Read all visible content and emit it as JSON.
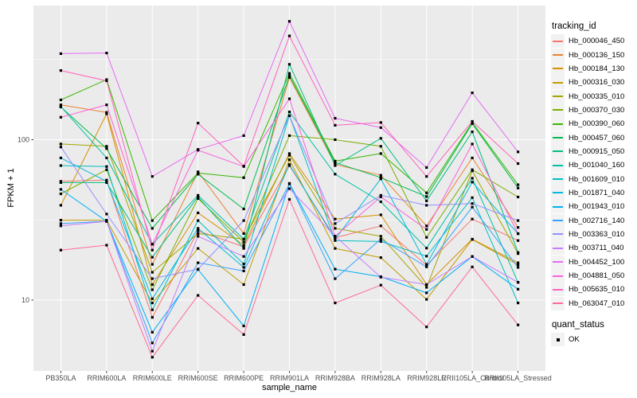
{
  "figure": {
    "panel_background": "#EBEBEB",
    "grid_color": "#FFFFFF",
    "axis_text_color": "#4D4D4D",
    "tick_color": "#333333",
    "title_text_color": "#000000",
    "legend_key_background": "#F2F2F2",
    "point_color": "#000000"
  },
  "legend": {
    "tracking_title": "tracking_id",
    "quant_title": "quant_status",
    "quant_label": "OK",
    "quant_marker": "black-square"
  },
  "chart_data": {
    "type": "line",
    "title": "",
    "xlabel": "sample_name",
    "ylabel": "FPKM + 1",
    "y_scale": "log10",
    "ylim": [
      3.6,
      686
    ],
    "yticks": [
      100,
      10
    ],
    "y_minor_gridlines": [
      316.23,
      31.62
    ],
    "grid": true,
    "legend_position": "right",
    "marker": "black-square",
    "quant_status_all_points": "OK",
    "categories": [
      "PB350LA",
      "RRIM600LA",
      "RRIM600LE",
      "RRIM600SE",
      "RRIM600PE",
      "RRIM901LA",
      "RRIM928BA",
      "RRIM928LA",
      "RRIM928LE",
      "RRII105LA_Control",
      "RRII105LA_Stressed"
    ],
    "series": [
      {
        "name": "Hb_000046_450",
        "color": "#F8766D",
        "values": [
          55,
          56,
          7.8,
          27,
          21.5,
          69,
          24.5,
          29,
          16.5,
          32,
          23.5
        ]
      },
      {
        "name": "Hb_000136_150",
        "color": "#EA8331",
        "values": [
          165,
          148,
          16.7,
          63,
          26,
          244,
          70,
          60,
          29,
          77,
          28.4
        ]
      },
      {
        "name": "Hb_000184_130",
        "color": "#D89000",
        "values": [
          39,
          145,
          12.5,
          35,
          22,
          82,
          32,
          34,
          12.5,
          24,
          17.1
        ]
      },
      {
        "name": "Hb_000316_030",
        "color": "#C09B00",
        "values": [
          31.5,
          31.5,
          9.6,
          21,
          12.5,
          75,
          21,
          18.4,
          10.1,
          23.9,
          16.6
        ]
      },
      {
        "name": "Hb_000335_010",
        "color": "#A3A500",
        "values": [
          94,
          91,
          14.9,
          26,
          24,
          80,
          28,
          25,
          12,
          64,
          19.5
        ]
      },
      {
        "name": "Hb_000370_030",
        "color": "#7CAE00",
        "values": [
          46,
          65,
          11.6,
          43,
          23,
          106,
          100,
          91,
          24.6,
          65,
          43.9
        ]
      },
      {
        "name": "Hb_000390_060",
        "color": "#39B600",
        "values": [
          177,
          237,
          31.3,
          62,
          58,
          259,
          73.5,
          82,
          46.6,
          128,
          52.4
        ]
      },
      {
        "name": "Hb_000457_060",
        "color": "#00BB4E",
        "values": [
          160,
          88,
          28,
          61,
          37,
          250,
          72,
          58,
          44.2,
          126,
          50
        ]
      },
      {
        "name": "Hb_000915_050",
        "color": "#00BF7D",
        "values": [
          54,
          54,
          18.5,
          44,
          21,
          295,
          69,
          102,
          41.6,
          112,
          19.8
        ]
      },
      {
        "name": "Hb_001040_160",
        "color": "#00C1A3",
        "values": [
          161,
          77,
          22.3,
          45,
          24,
          149,
          61,
          41,
          21.1,
          57.5,
          12.9
        ]
      },
      {
        "name": "Hb_001609_010",
        "color": "#00BFC4",
        "values": [
          69,
          68,
          8.7,
          31.3,
          16.8,
          141,
          23.5,
          23.2,
          18.8,
          43.5,
          9.6
        ]
      },
      {
        "name": "Hb_001871_040",
        "color": "#00BAE0",
        "values": [
          77,
          55,
          10.2,
          28,
          16,
          70,
          24,
          57,
          16.7,
          54.4,
          25.9
        ]
      },
      {
        "name": "Hb_001943_010",
        "color": "#00B0F6",
        "values": [
          49,
          31,
          6.3,
          15.5,
          6.9,
          53.4,
          15.6,
          14,
          11.1,
          18.7,
          11.7
        ]
      },
      {
        "name": "Hb_002716_140",
        "color": "#35A2FF",
        "values": [
          30,
          31,
          5.4,
          17.1,
          15.2,
          53,
          13.6,
          24,
          16.1,
          38,
          16
        ]
      },
      {
        "name": "Hb_003363_010",
        "color": "#9590FF",
        "values": [
          90,
          34.4,
          13.6,
          15.6,
          31.3,
          141,
          30,
          45,
          39,
          40,
          31.3
        ]
      },
      {
        "name": "Hb_003711_040",
        "color": "#C77CFF",
        "values": [
          29,
          31,
          4.8,
          25,
          18.7,
          49.5,
          25,
          13.9,
          12.5,
          18.7,
          12.9
        ]
      },
      {
        "name": "Hb_004452_100",
        "color": "#E76BF3",
        "values": [
          344,
          347,
          59,
          87,
          106,
          547,
          136,
          119,
          67,
          196,
          84
        ]
      },
      {
        "name": "Hb_004881_050",
        "color": "#FA62DB",
        "values": [
          138,
          165,
          22.3,
          86,
          68,
          180,
          25,
          44,
          27.6,
          94,
          26
        ]
      },
      {
        "name": "Hb_005635_010",
        "color": "#FF62BC",
        "values": [
          270,
          233,
          20.5,
          127,
          68.5,
          444,
          123,
          128,
          59,
          130,
          71
        ]
      },
      {
        "name": "Hb_063047_010",
        "color": "#FF6A98",
        "values": [
          20.5,
          22,
          4.4,
          10.7,
          6.1,
          42.5,
          9.6,
          12.4,
          6.8,
          16.1,
          7
        ]
      }
    ]
  }
}
